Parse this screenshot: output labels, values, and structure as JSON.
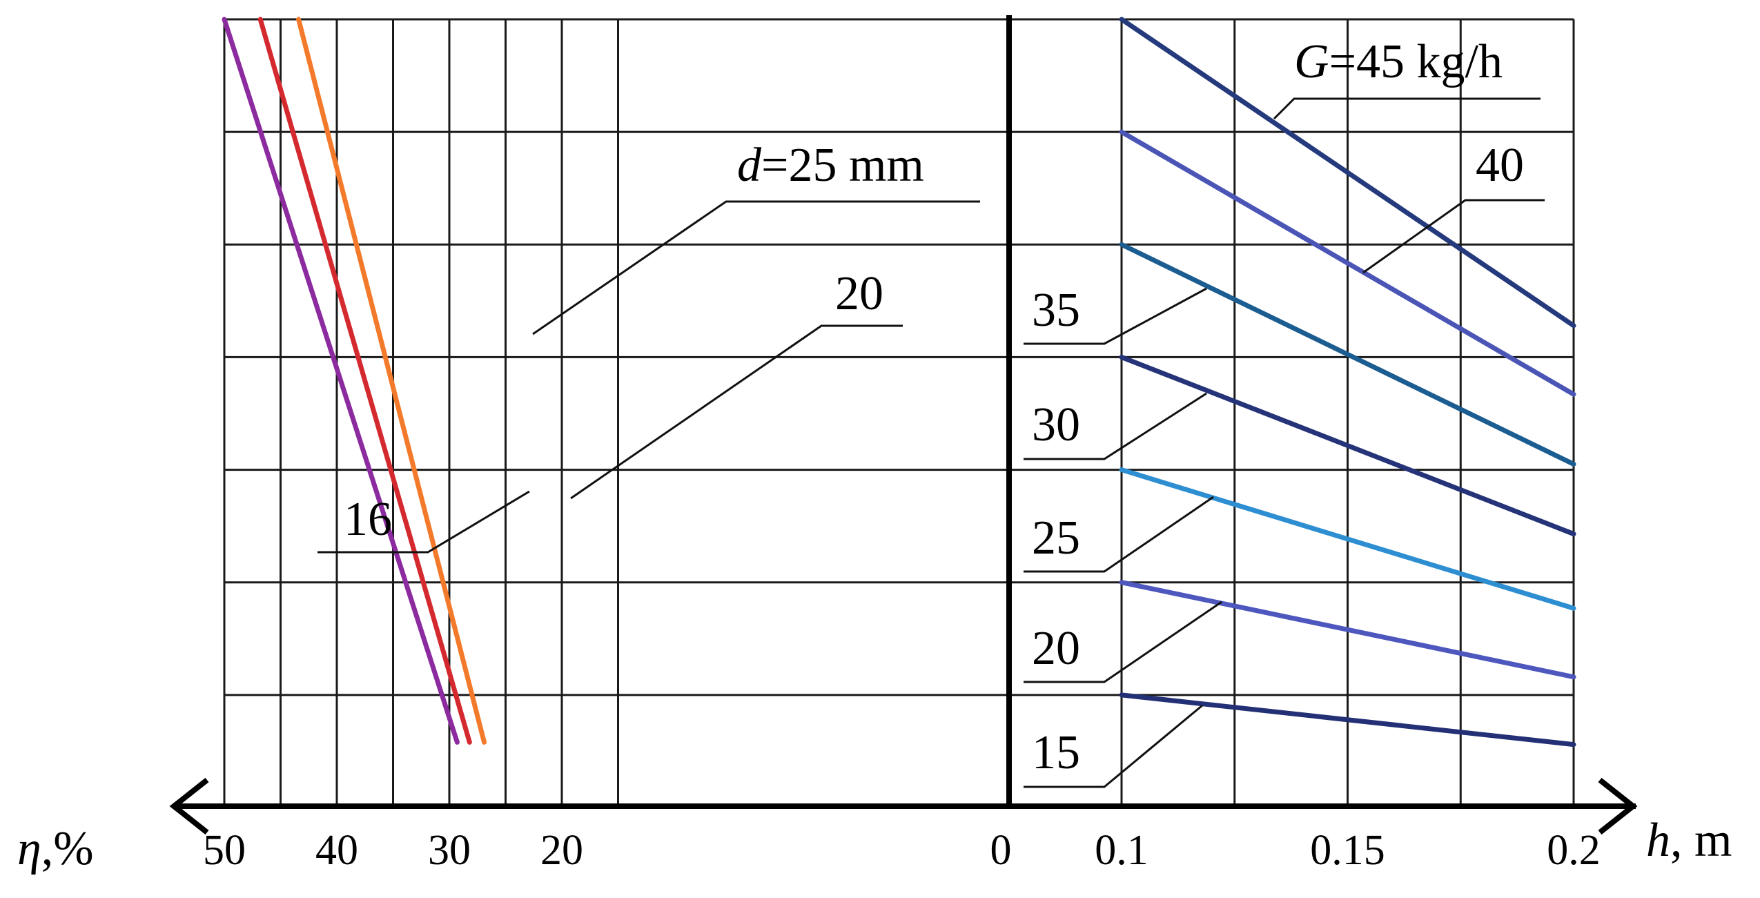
{
  "chart_data": [
    {
      "type": "line",
      "panel": "left",
      "xlabel": "η,%",
      "xlabel_symbol": "η",
      "xlabel_unit": ",%",
      "ylabel": "",
      "x_axis_direction": "reversed",
      "xlim": [
        0,
        50
      ],
      "x_ticks": [
        50,
        40,
        30,
        20
      ],
      "x_tick_labels": [
        "50",
        "40",
        "30",
        "20"
      ],
      "origin_label": "0",
      "y_grid_levels": 7,
      "grid": true,
      "series": [
        {
          "name": "d=25 mm",
          "label": "=25 mm",
          "label_symbol": "d",
          "color": "#f47a2b",
          "points": [
            [
              43.4,
              7.0
            ],
            [
              26.9,
              0.58
            ]
          ]
        },
        {
          "name": "20",
          "label": "20",
          "color": "#d42a2f",
          "points": [
            [
              46.8,
              7.0
            ],
            [
              28.2,
              0.58
            ]
          ]
        },
        {
          "name": "16",
          "label": "16",
          "color": "#8c2b9f",
          "points": [
            [
              50.0,
              7.0
            ],
            [
              29.3,
              0.58
            ]
          ]
        }
      ]
    },
    {
      "type": "line",
      "panel": "right",
      "xlabel": "h, m",
      "xlabel_symbol": "h",
      "xlabel_unit": ", m",
      "ylabel": "",
      "xlim": [
        0.1,
        0.2
      ],
      "x_ticks": [
        0.1,
        0.15,
        0.2
      ],
      "x_tick_labels": [
        "0.1",
        "0.15",
        "0.2"
      ],
      "y_grid_levels": 7,
      "grid": true,
      "series": [
        {
          "name": "G=45 kg/h",
          "label": "=45 kg/h",
          "label_symbol": "G",
          "color": "#253a7c",
          "points": [
            [
              0.1,
              7.0
            ],
            [
              0.2,
              4.28
            ]
          ]
        },
        {
          "name": "40",
          "label": "40",
          "color": "#4b55b6",
          "points": [
            [
              0.1,
              6.0
            ],
            [
              0.2,
              3.67
            ]
          ]
        },
        {
          "name": "35",
          "label": "35",
          "color": "#1c5d91",
          "points": [
            [
              0.1,
              5.0
            ],
            [
              0.2,
              3.05
            ]
          ]
        },
        {
          "name": "30",
          "label": "30",
          "color": "#253378",
          "points": [
            [
              0.1,
              4.0
            ],
            [
              0.2,
              2.43
            ]
          ]
        },
        {
          "name": "25",
          "label": "25",
          "color": "#2d8ed1",
          "points": [
            [
              0.1,
              3.0
            ],
            [
              0.2,
              1.77
            ]
          ]
        },
        {
          "name": "20",
          "label": "20",
          "color": "#4d57bd",
          "points": [
            [
              0.1,
              2.0
            ],
            [
              0.2,
              1.16
            ]
          ]
        },
        {
          "name": "15",
          "label": "15",
          "color": "#233075",
          "points": [
            [
              0.1,
              1.0
            ],
            [
              0.2,
              0.56
            ]
          ]
        }
      ]
    }
  ]
}
